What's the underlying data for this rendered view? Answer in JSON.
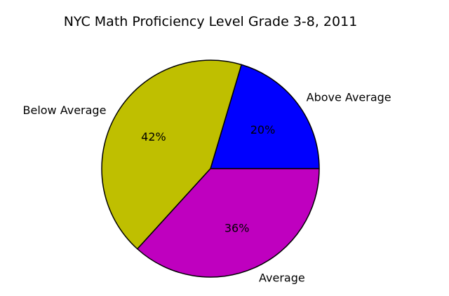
{
  "chart_data": {
    "type": "pie",
    "title": "NYC Math Proficiency Level Grade 3-8, 2011",
    "slices": [
      {
        "label": "Above Average",
        "value": 20,
        "pct_label": "20%",
        "color": "#0000ff"
      },
      {
        "label": "Below Average",
        "value": 42,
        "pct_label": "42%",
        "color": "#bfbf00"
      },
      {
        "label": "Average",
        "value": 36,
        "pct_label": "36%",
        "color": "#bf00bf"
      }
    ],
    "start_angle": 0,
    "direction": "counterclockwise",
    "legend": "none"
  }
}
